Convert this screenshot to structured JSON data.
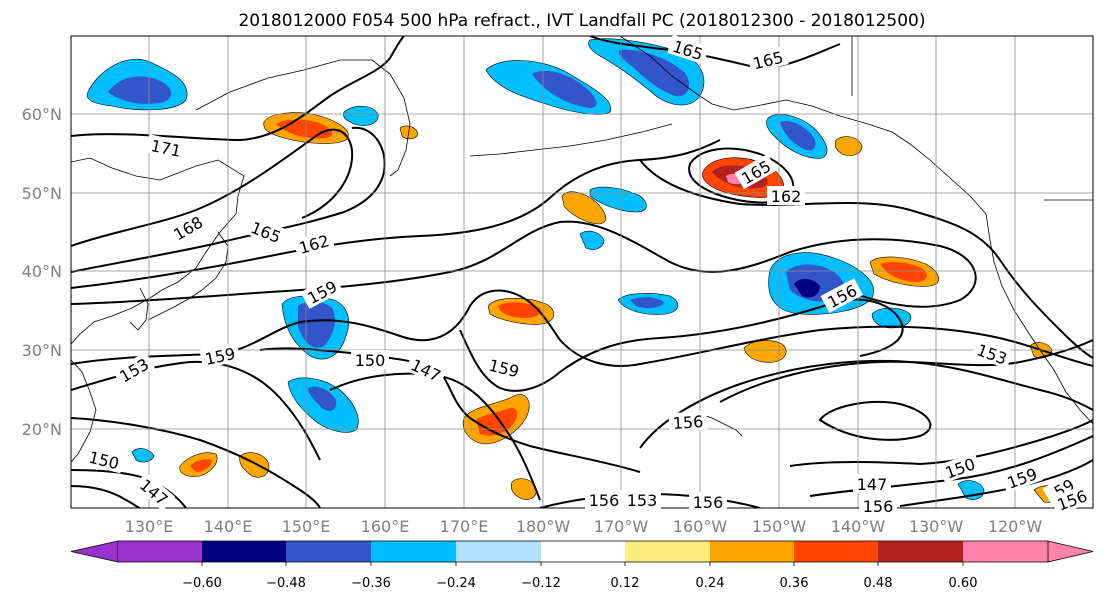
{
  "title": "2018012000 F054 500 hPa refract., IVT Landfall PC (2018012300 - 2018012500)",
  "map": {
    "lat_ticks": [
      "60°N",
      "50°N",
      "40°N",
      "30°N",
      "20°N"
    ],
    "lon_ticks": [
      "130°E",
      "140°E",
      "150°E",
      "160°E",
      "170°E",
      "180°W",
      "170°W",
      "160°W",
      "150°W",
      "140°W",
      "130°W",
      "120°W"
    ],
    "contour_labels": [
      {
        "id": "c171",
        "text": "171"
      },
      {
        "id": "c168",
        "text": "168"
      },
      {
        "id": "c165a",
        "text": "165"
      },
      {
        "id": "c165b",
        "text": "165"
      },
      {
        "id": "c165c",
        "text": "165"
      },
      {
        "id": "c165d",
        "text": "165"
      },
      {
        "id": "c162a",
        "text": "162"
      },
      {
        "id": "c162b",
        "text": "162"
      },
      {
        "id": "c159a",
        "text": "159"
      },
      {
        "id": "c159b",
        "text": "159"
      },
      {
        "id": "c159c",
        "text": "159"
      },
      {
        "id": "c159d",
        "text": "159"
      },
      {
        "id": "c159e",
        "text": "59"
      },
      {
        "id": "c156a",
        "text": "156"
      },
      {
        "id": "c156b",
        "text": "156"
      },
      {
        "id": "c156c",
        "text": "156"
      },
      {
        "id": "c156d",
        "text": "156"
      },
      {
        "id": "c156e",
        "text": "156"
      },
      {
        "id": "c156f",
        "text": "156"
      },
      {
        "id": "c153a",
        "text": "153"
      },
      {
        "id": "c153b",
        "text": "153"
      },
      {
        "id": "c153c",
        "text": "153"
      },
      {
        "id": "c150a",
        "text": "150"
      },
      {
        "id": "c150b",
        "text": "150"
      },
      {
        "id": "c150c",
        "text": "150"
      },
      {
        "id": "c147a",
        "text": "147"
      },
      {
        "id": "c147b",
        "text": "147"
      },
      {
        "id": "c147c",
        "text": "147"
      }
    ]
  },
  "colorbar": {
    "tick_labels": [
      "−0.60",
      "−0.48",
      "−0.36",
      "−0.24",
      "−0.12",
      "0.12",
      "0.24",
      "0.36",
      "0.48",
      "0.60"
    ],
    "colors": [
      "#9933cc",
      "#000080",
      "#3355cc",
      "#00bfff",
      "#b0e2ff",
      "#ffffff",
      "#ffec80",
      "#ffa500",
      "#ff4500",
      "#b22222",
      "#ff82ab"
    ]
  }
}
